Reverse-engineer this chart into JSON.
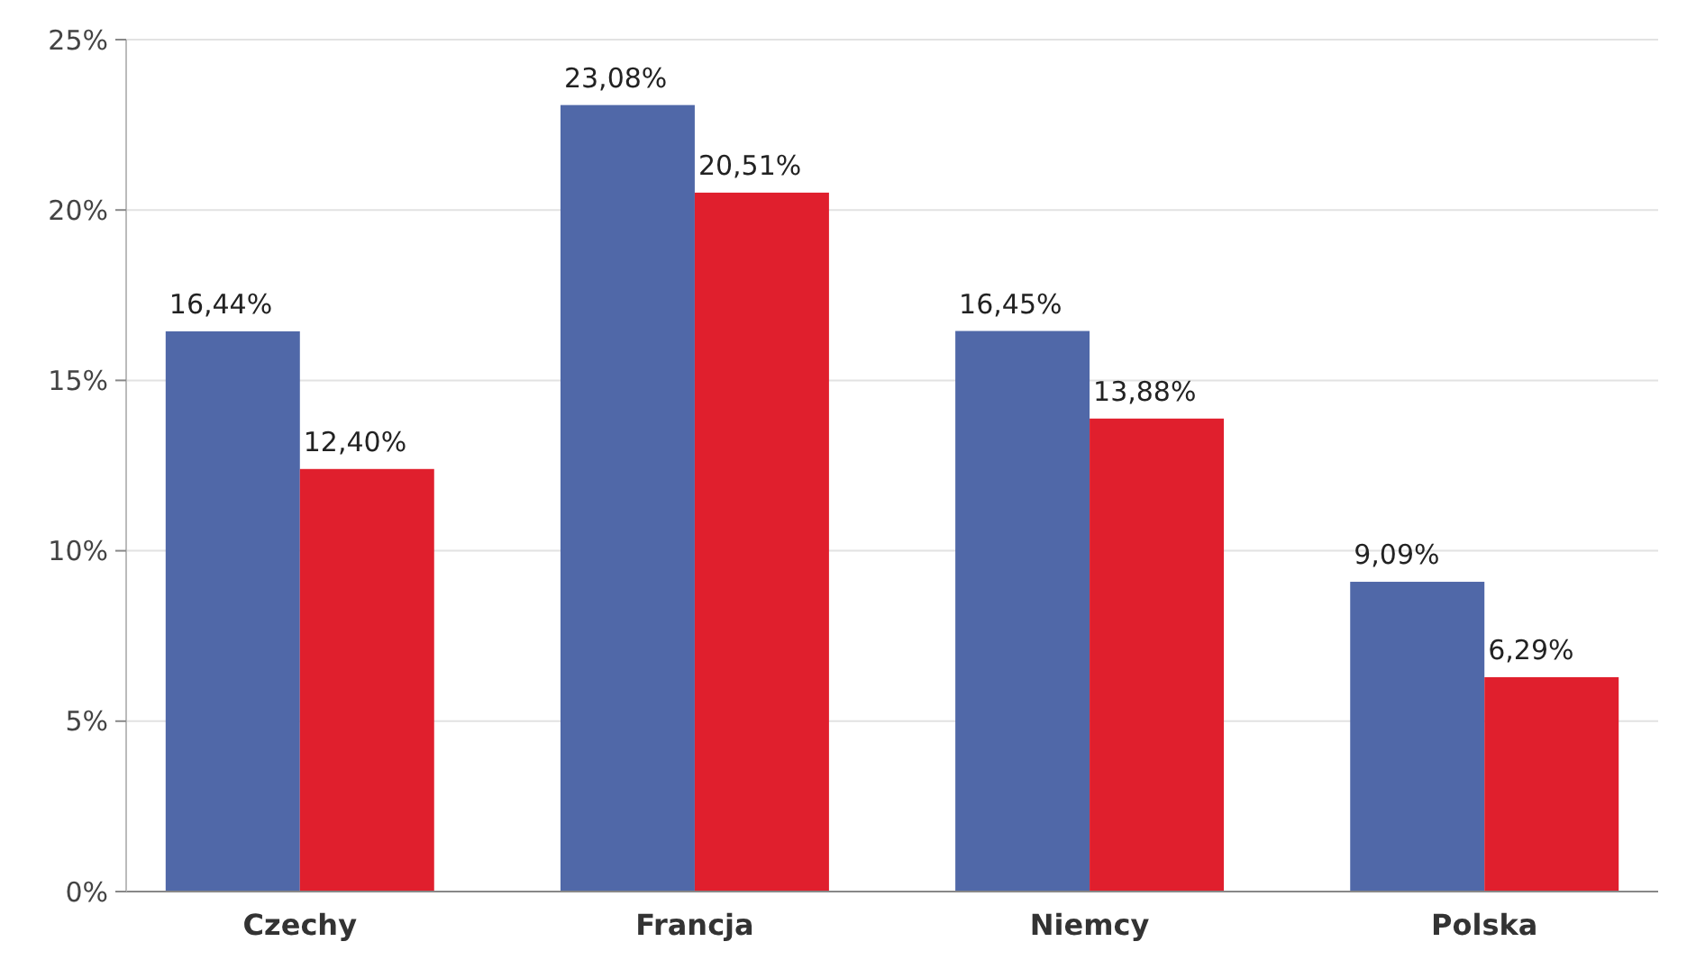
{
  "chart_data": {
    "type": "bar",
    "categories": [
      "Czechy",
      "Francja",
      "Niemcy",
      "Polska"
    ],
    "series": [
      {
        "color": "#5068a8",
        "values": [
          16.44,
          23.08,
          16.45,
          9.09
        ],
        "value_labels": [
          "16,44%",
          "23,08%",
          "16,45%",
          "9,09%"
        ]
      },
      {
        "color": "#e01f2d",
        "values": [
          12.4,
          20.51,
          13.88,
          6.29
        ],
        "value_labels": [
          "12,40%",
          "20,51%",
          "13,88%",
          "6,29%"
        ]
      }
    ],
    "ylim": [
      0,
      25
    ],
    "yticks": [
      {
        "value": 0,
        "label": "0%"
      },
      {
        "value": 5,
        "label": "5%"
      },
      {
        "value": 10,
        "label": "10%"
      },
      {
        "value": 15,
        "label": "15%"
      },
      {
        "value": 20,
        "label": "20%"
      },
      {
        "value": 25,
        "label": "25%"
      }
    ],
    "grid": "y"
  }
}
